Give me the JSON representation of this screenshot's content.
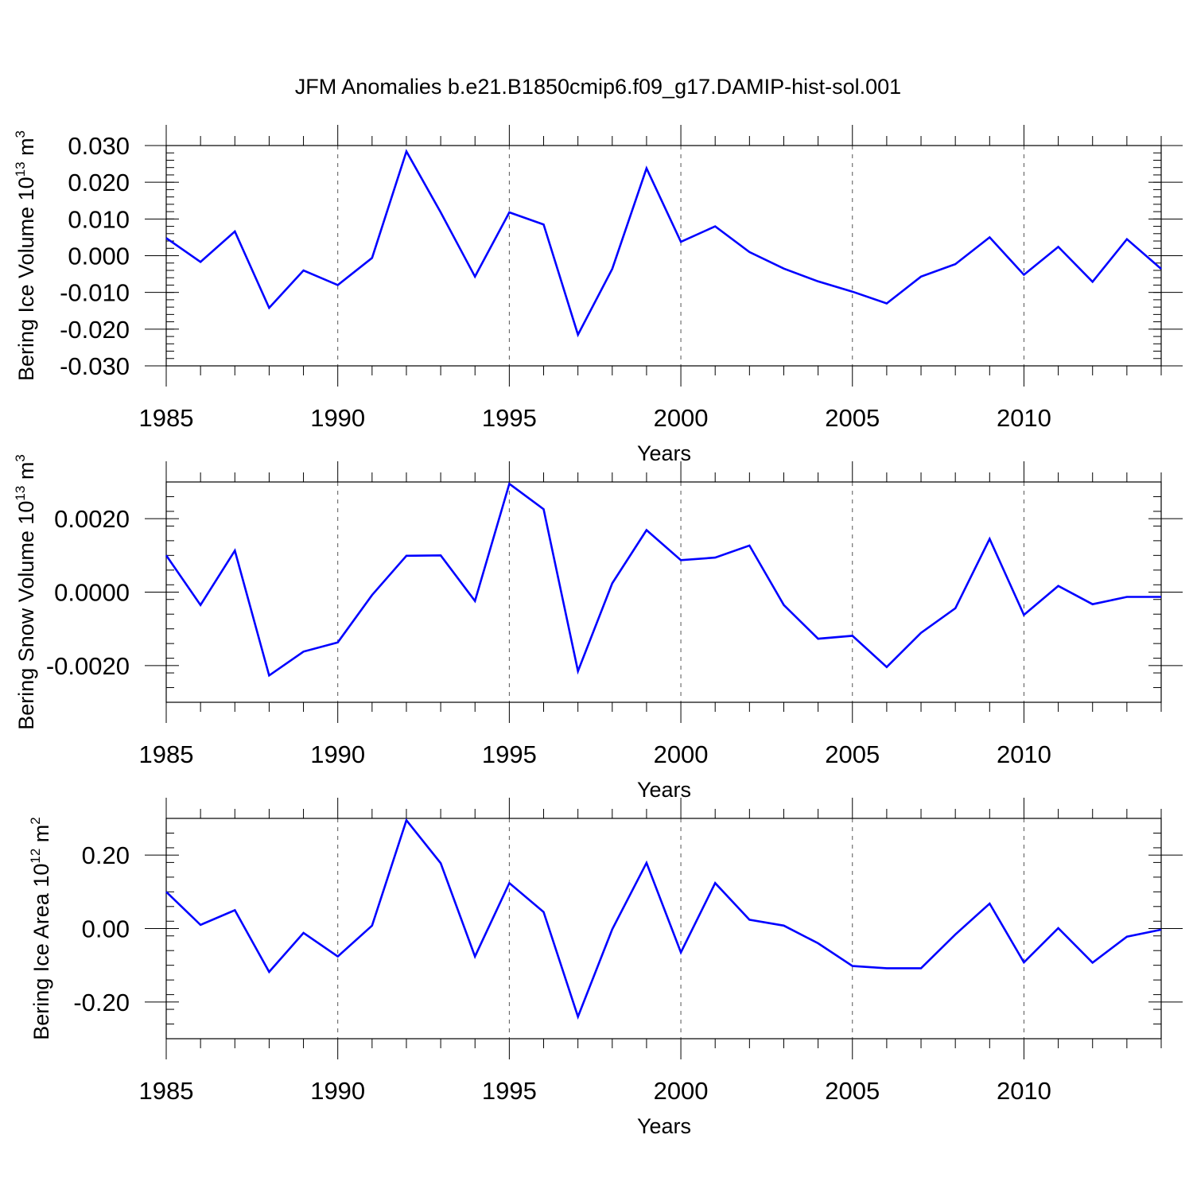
{
  "title": "JFM Anomalies b.e21.B1850cmip6.f09_g17.DAMIP-hist-sol.001",
  "line_color": "#0000ff",
  "chart_data": [
    {
      "type": "line",
      "ylabel_main": "Bering Ice Volume 10",
      "ylabel_exp": "13",
      "ylabel_unit": " m",
      "ylabel_unit_exp": "3",
      "xlabel": "Years",
      "xlim": [
        1985,
        2014
      ],
      "ylim": [
        -0.03,
        0.03
      ],
      "yticks": [
        -0.03,
        -0.02,
        -0.01,
        0.0,
        0.01,
        0.02,
        0.03
      ],
      "ytick_labels": [
        "-0.030",
        "-0.020",
        "-0.010",
        "0.000",
        "0.010",
        "0.020",
        "0.030"
      ],
      "xticks": [
        1985,
        1990,
        1995,
        2000,
        2005,
        2010
      ],
      "xtick_labels": [
        "1985",
        "1990",
        "1995",
        "2000",
        "2005",
        "2010"
      ],
      "grid": "vertical dashed at labeled years",
      "x": [
        1985,
        1986,
        1987,
        1988,
        1989,
        1990,
        1991,
        1992,
        1993,
        1994,
        1995,
        1996,
        1997,
        1998,
        1999,
        2000,
        2001,
        2002,
        2003,
        2004,
        2005,
        2006,
        2007,
        2008,
        2009,
        2010,
        2011,
        2012,
        2013,
        2014
      ],
      "values": [
        0.0048,
        -0.0017,
        0.0066,
        -0.0142,
        -0.004,
        -0.008,
        -0.0006,
        0.0284,
        0.0118,
        -0.0057,
        0.0118,
        0.0085,
        -0.0215,
        -0.0036,
        0.0238,
        0.0038,
        0.008,
        0.001,
        -0.0035,
        -0.007,
        -0.0098,
        -0.013,
        -0.0057,
        -0.0023,
        0.005,
        -0.0052,
        0.0024,
        -0.0071,
        0.0045,
        -0.0036
      ]
    },
    {
      "type": "line",
      "ylabel_main": "Bering Snow Volume 10",
      "ylabel_exp": "13",
      "ylabel_unit": " m",
      "ylabel_unit_exp": "3",
      "xlabel": "Years",
      "xlim": [
        1985,
        2014
      ],
      "ylim": [
        -0.003,
        0.003
      ],
      "yticks": [
        -0.002,
        0.0,
        0.002
      ],
      "ytick_labels": [
        "-0.0020",
        "0.0000",
        "0.0020"
      ],
      "xticks": [
        1985,
        1990,
        1995,
        2000,
        2005,
        2010
      ],
      "xtick_labels": [
        "1985",
        "1990",
        "1995",
        "2000",
        "2005",
        "2010"
      ],
      "grid": "vertical dashed at labeled years",
      "x": [
        1985,
        1986,
        1987,
        1988,
        1989,
        1990,
        1991,
        1992,
        1993,
        1994,
        1995,
        1996,
        1997,
        1998,
        1999,
        2000,
        2001,
        2002,
        2003,
        2004,
        2005,
        2006,
        2007,
        2008,
        2009,
        2010,
        2011,
        2012,
        2013,
        2014
      ],
      "values": [
        0.001,
        -0.00035,
        0.00113,
        -0.00227,
        -0.00162,
        -0.00137,
        -8e-05,
        0.00099,
        0.001,
        -0.00024,
        0.00295,
        0.00226,
        -0.00215,
        0.00024,
        0.00169,
        0.00087,
        0.00094,
        0.00127,
        -0.00035,
        -0.00127,
        -0.00119,
        -0.00204,
        -0.00111,
        -0.00044,
        0.00145,
        -0.00062,
        0.00017,
        -0.00033,
        -0.00013,
        -0.00013
      ]
    },
    {
      "type": "line",
      "ylabel_main": "Bering Ice Area 10",
      "ylabel_exp": "12",
      "ylabel_unit": " m",
      "ylabel_unit_exp": "2",
      "xlabel": "Years",
      "xlim": [
        1985,
        2014
      ],
      "ylim": [
        -0.3,
        0.3
      ],
      "yticks": [
        -0.2,
        0.0,
        0.2
      ],
      "ytick_labels": [
        "-0.20",
        "0.00",
        "0.20"
      ],
      "xticks": [
        1985,
        1990,
        1995,
        2000,
        2005,
        2010
      ],
      "xtick_labels": [
        "1985",
        "1990",
        "1995",
        "2000",
        "2005",
        "2010"
      ],
      "grid": "vertical dashed at labeled years",
      "x": [
        1985,
        1986,
        1987,
        1988,
        1989,
        1990,
        1991,
        1992,
        1993,
        1994,
        1995,
        1996,
        1997,
        1998,
        1999,
        2000,
        2001,
        2002,
        2003,
        2004,
        2005,
        2006,
        2007,
        2008,
        2009,
        2010,
        2011,
        2012,
        2013,
        2014
      ],
      "values": [
        0.1,
        0.01,
        0.05,
        -0.118,
        -0.012,
        -0.076,
        0.008,
        0.295,
        0.178,
        -0.076,
        0.124,
        0.045,
        -0.24,
        -0.002,
        0.179,
        -0.065,
        0.124,
        0.024,
        0.008,
        -0.04,
        -0.102,
        -0.108,
        -0.108,
        -0.016,
        0.068,
        -0.092,
        0.001,
        -0.093,
        -0.022,
        -0.003
      ]
    }
  ]
}
